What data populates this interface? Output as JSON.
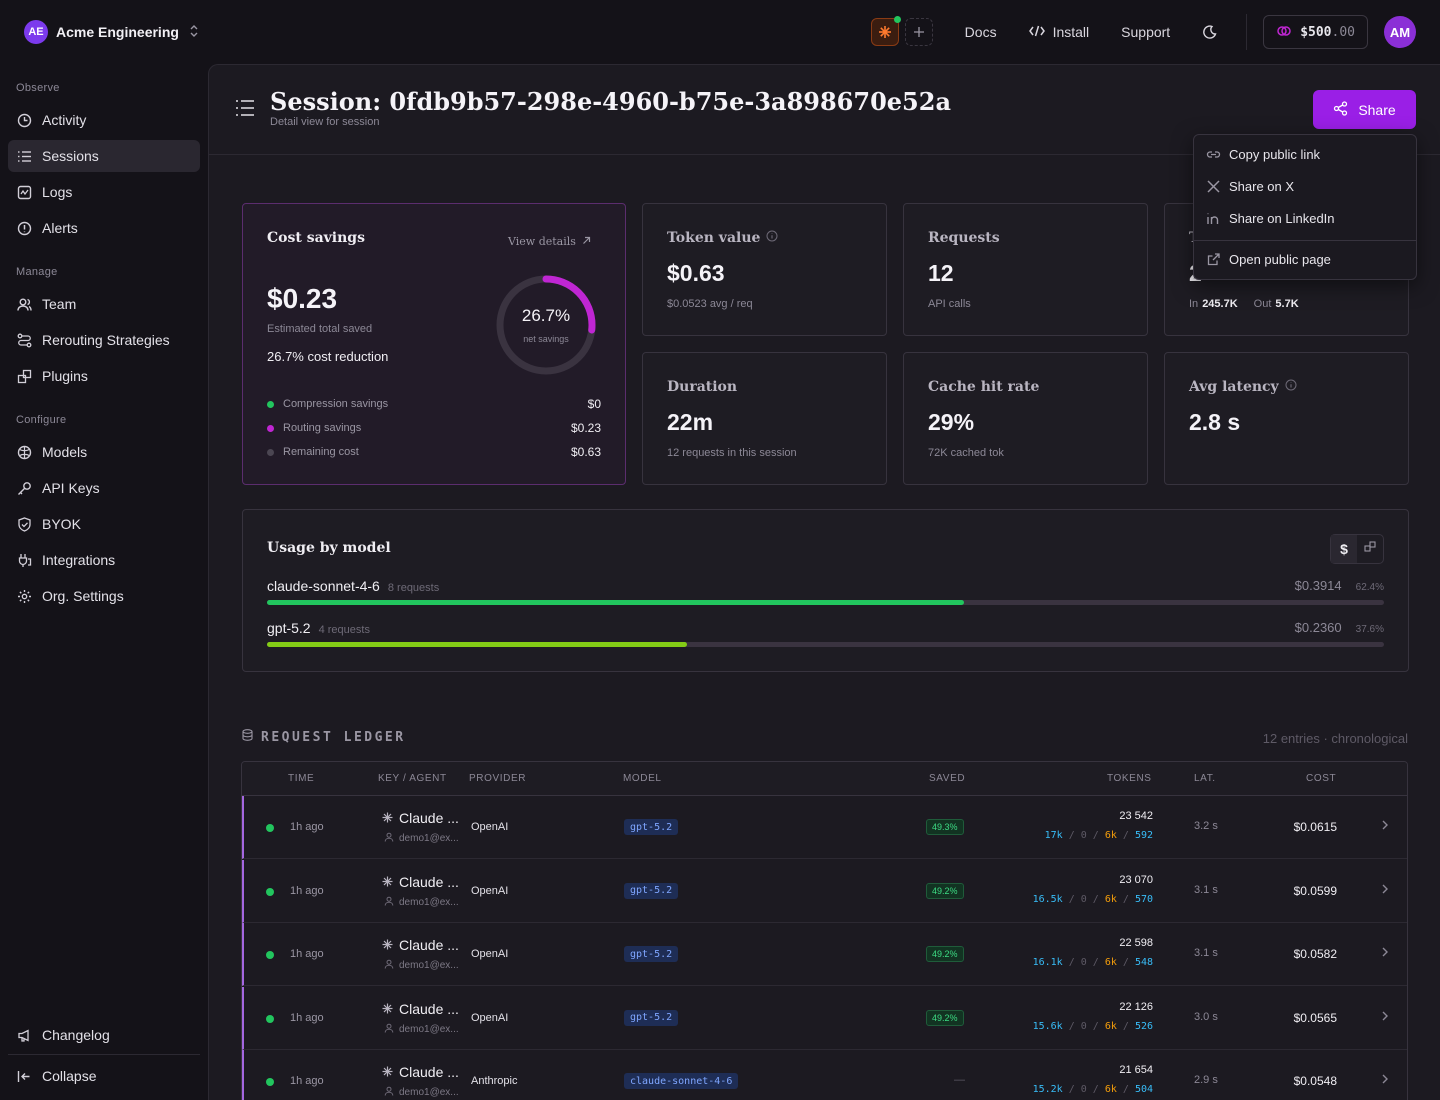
{
  "topbar": {
    "org_initials": "AE",
    "org_name": "Acme Engineering",
    "links": [
      "Docs",
      "Install",
      "Support"
    ],
    "credit_main": "$500",
    "credit_cents": ".00",
    "user_initials": "AM"
  },
  "sidebar": {
    "sections": [
      "Observe",
      "Manage",
      "Configure"
    ],
    "items": [
      {
        "label": "Activity",
        "icon": "activity-icon"
      },
      {
        "label": "Sessions",
        "icon": "list-icon",
        "active": true
      },
      {
        "label": "Logs",
        "icon": "logs-icon"
      },
      {
        "label": "Alerts",
        "icon": "alert-icon"
      },
      {
        "label": "Team",
        "icon": "team-icon"
      },
      {
        "label": "Rerouting Strategies",
        "icon": "reroute-icon"
      },
      {
        "label": "Plugins",
        "icon": "plugins-icon"
      },
      {
        "label": "Models",
        "icon": "models-icon"
      },
      {
        "label": "API Keys",
        "icon": "key-icon"
      },
      {
        "label": "BYOK",
        "icon": "shield-icon"
      },
      {
        "label": "Integrations",
        "icon": "integrations-icon"
      },
      {
        "label": "Org. Settings",
        "icon": "gear-icon"
      }
    ],
    "changelog": "Changelog",
    "collapse": "Collapse"
  },
  "header": {
    "title": "Session: 0fdb9b57-298e-4960-b75e-3a898670e52a",
    "subtitle": "Detail view for session",
    "share_label": "Share"
  },
  "share_menu": [
    "Copy public link",
    "Share on X",
    "Share on LinkedIn",
    "Open public page"
  ],
  "cost_savings": {
    "title": "Cost savings",
    "view_details": "View details",
    "value": "$0.23",
    "value_label": "Estimated total saved",
    "reduction": "26.7% cost reduction",
    "ring_pct": "26.7%",
    "ring_fraction": 0.267,
    "ring_label": "net savings",
    "legend": [
      {
        "label": "Compression savings",
        "value": "$0",
        "color": "#22c55e"
      },
      {
        "label": "Routing savings",
        "value": "$0.23",
        "color": "#c026d3"
      },
      {
        "label": "Remaining cost",
        "value": "$0.63",
        "color": "#4b4652"
      }
    ]
  },
  "stats": [
    {
      "title": "Token value",
      "value": "$0.63",
      "sub": "$0.0523 avg / req"
    },
    {
      "title": "Requests",
      "value": "12",
      "sub": "API calls"
    },
    {
      "title": "T",
      "value": "2",
      "in_label": "In",
      "in_value": "245.7K",
      "out_label": "Out",
      "out_value": "5.7K"
    },
    {
      "title": "Duration",
      "value": "22m",
      "sub": "12 requests in this session"
    },
    {
      "title": "Cache hit rate",
      "value": "29%",
      "sub": "72K cached tok"
    },
    {
      "title": "Avg latency",
      "value": "2.8 s",
      "sub": ""
    }
  ],
  "usage": {
    "title": "Usage by model",
    "models": [
      {
        "name": "claude-sonnet-4-6",
        "requests": "8 requests",
        "cost": "$0.3914",
        "pct": "62.4%",
        "fraction": 0.624,
        "color": "#22c55e"
      },
      {
        "name": "gpt-5.2",
        "requests": "4 requests",
        "cost": "$0.2360",
        "pct": "37.6%",
        "fraction": 0.376,
        "color": "#84cc16"
      }
    ]
  },
  "ledger": {
    "title": "REQUEST LEDGER",
    "meta": "12 entries · chronological",
    "columns": [
      "TIME",
      "KEY / AGENT",
      "PROVIDER",
      "MODEL",
      "SAVED",
      "TOKENS",
      "LAT.",
      "COST"
    ],
    "rows": [
      {
        "time": "1h ago",
        "agent": "Claude ...",
        "user": "demo1@ex...",
        "provider": "OpenAI",
        "model": "gpt-5.2",
        "saved": "49.3%",
        "tokens": "23 542",
        "t1": "17k",
        "t2": "0",
        "t3": "6k",
        "t4": "592",
        "lat": "3.2 s",
        "cost": "$0.0615"
      },
      {
        "time": "1h ago",
        "agent": "Claude ...",
        "user": "demo1@ex...",
        "provider": "OpenAI",
        "model": "gpt-5.2",
        "saved": "49.2%",
        "tokens": "23 070",
        "t1": "16.5k",
        "t2": "0",
        "t3": "6k",
        "t4": "570",
        "lat": "3.1 s",
        "cost": "$0.0599"
      },
      {
        "time": "1h ago",
        "agent": "Claude ...",
        "user": "demo1@ex...",
        "provider": "OpenAI",
        "model": "gpt-5.2",
        "saved": "49.2%",
        "tokens": "22 598",
        "t1": "16.1k",
        "t2": "0",
        "t3": "6k",
        "t4": "548",
        "lat": "3.1 s",
        "cost": "$0.0582"
      },
      {
        "time": "1h ago",
        "agent": "Claude ...",
        "user": "demo1@ex...",
        "provider": "OpenAI",
        "model": "gpt-5.2",
        "saved": "49.2%",
        "tokens": "22 126",
        "t1": "15.6k",
        "t2": "0",
        "t3": "6k",
        "t4": "526",
        "lat": "3.0 s",
        "cost": "$0.0565"
      },
      {
        "time": "1h ago",
        "agent": "Claude ...",
        "user": "demo1@ex...",
        "provider": "Anthropic",
        "model": "claude-sonnet-4-6",
        "saved": "—",
        "tokens": "21 654",
        "t1": "15.2k",
        "t2": "0",
        "t3": "6k",
        "t4": "504",
        "lat": "2.9 s",
        "cost": "$0.0548"
      }
    ]
  }
}
